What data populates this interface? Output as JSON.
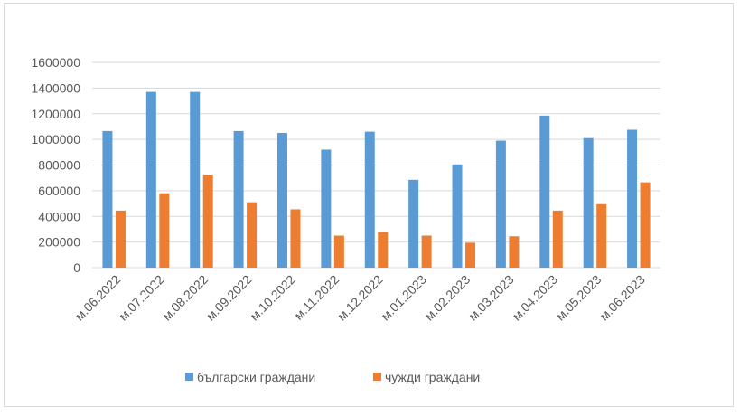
{
  "chart_data": {
    "type": "bar",
    "title": "",
    "xlabel": "",
    "ylabel": "",
    "ylim": [
      0,
      1600000
    ],
    "yticks": [
      0,
      200000,
      400000,
      600000,
      800000,
      1000000,
      1200000,
      1400000,
      1600000
    ],
    "ytick_labels": [
      "0",
      "200000",
      "400000",
      "600000",
      "800000",
      "1000000",
      "1200000",
      "1400000",
      "1600000"
    ],
    "grid": true,
    "legend_position": "bottom",
    "categories": [
      "м.06.2022",
      "м.07.2022",
      "м.08.2022",
      "м.09.2022",
      "м.10.2022",
      "м.11.2022",
      "м.12.2022",
      "м.01.2023",
      "м.02.2023",
      "м.03.2023",
      "м.04.2023",
      "м.05.2023",
      "м.06.2023"
    ],
    "series": [
      {
        "name": "български граждани",
        "color": "#5b9bd5",
        "values": [
          1065000,
          1370000,
          1370000,
          1065000,
          1050000,
          920000,
          1060000,
          685000,
          805000,
          990000,
          1185000,
          1010000,
          1075000
        ]
      },
      {
        "name": "чужди граждани",
        "color": "#ed7d31",
        "values": [
          445000,
          580000,
          725000,
          510000,
          455000,
          250000,
          280000,
          250000,
          195000,
          245000,
          445000,
          495000,
          665000
        ]
      }
    ]
  }
}
